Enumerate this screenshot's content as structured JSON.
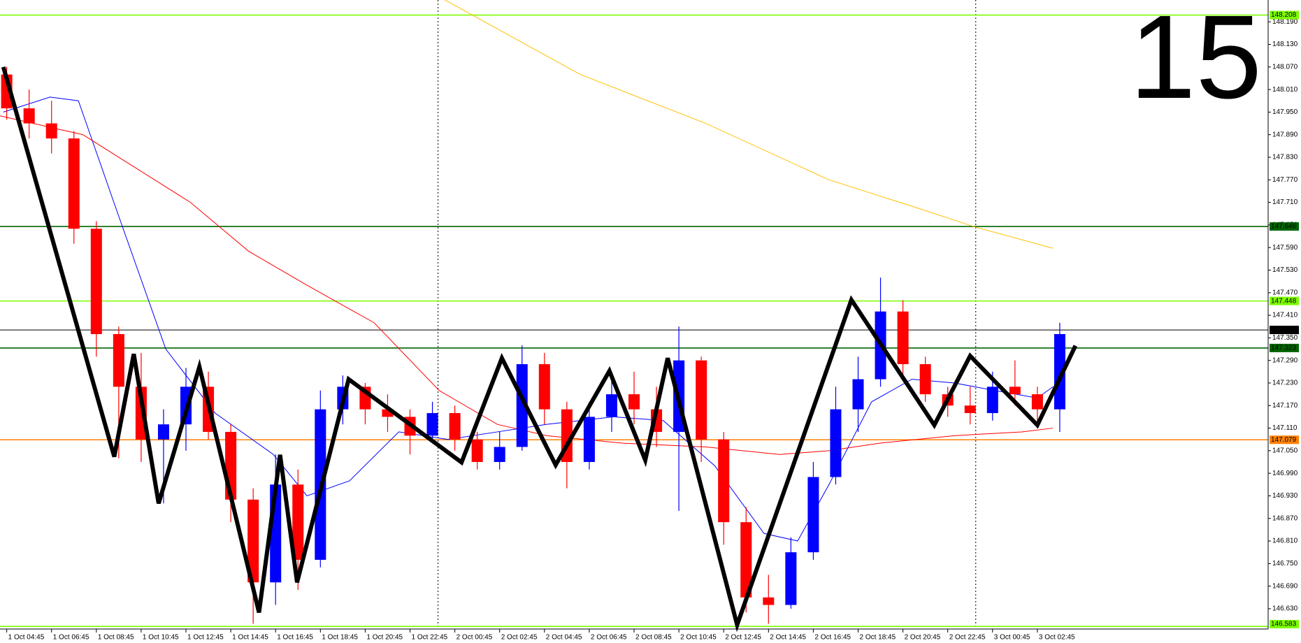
{
  "chart_data": {
    "type": "candlestick",
    "timeframe_label": "15",
    "xlim": [
      -0.3,
      56.3
    ],
    "ylim": [
      146.576,
      148.248
    ],
    "xticks": [
      {
        "value": 0,
        "label": "1 Oct 04:45"
      },
      {
        "value": 2,
        "label": "1 Oct 06:45"
      },
      {
        "value": 4,
        "label": "1 Oct 08:45"
      },
      {
        "value": 6,
        "label": "1 Oct 10:45"
      },
      {
        "value": 8,
        "label": "1 Oct 12:45"
      },
      {
        "value": 10,
        "label": "1 Oct 14:45"
      },
      {
        "value": 12,
        "label": "1 Oct 16:45"
      },
      {
        "value": 14,
        "label": "1 Oct 18:45"
      },
      {
        "value": 16,
        "label": "1 Oct 20:45"
      },
      {
        "value": 18,
        "label": "1 Oct 22:45"
      },
      {
        "value": 20,
        "label": "2 Oct 00:45"
      },
      {
        "value": 22,
        "label": "2 Oct 02:45"
      },
      {
        "value": 24,
        "label": "2 Oct 04:45"
      },
      {
        "value": 26,
        "label": "2 Oct 06:45"
      },
      {
        "value": 28,
        "label": "2 Oct 08:45"
      },
      {
        "value": 30,
        "label": "2 Oct 10:45"
      },
      {
        "value": 32,
        "label": "2 Oct 12:45"
      },
      {
        "value": 34,
        "label": "2 Oct 14:45"
      },
      {
        "value": 36,
        "label": "2 Oct 16:45"
      },
      {
        "value": 38,
        "label": "2 Oct 18:45"
      },
      {
        "value": 40,
        "label": "2 Oct 20:45"
      },
      {
        "value": 42,
        "label": "2 Oct 22:45"
      },
      {
        "value": 44,
        "label": "3 Oct 00:45"
      },
      {
        "value": 46,
        "label": "3 Oct 02:45"
      }
    ],
    "yticks": [
      {
        "value": 146.63,
        "label": "146.630"
      },
      {
        "value": 146.69,
        "label": "146.690"
      },
      {
        "value": 146.75,
        "label": "146.750"
      },
      {
        "value": 146.81,
        "label": "146.810"
      },
      {
        "value": 146.87,
        "label": "146.870"
      },
      {
        "value": 146.93,
        "label": "146.930"
      },
      {
        "value": 146.99,
        "label": "146.990"
      },
      {
        "value": 147.05,
        "label": "147.050"
      },
      {
        "value": 147.11,
        "label": "147.110"
      },
      {
        "value": 147.17,
        "label": "147.170"
      },
      {
        "value": 147.23,
        "label": "147.230"
      },
      {
        "value": 147.29,
        "label": "147.290"
      },
      {
        "value": 147.35,
        "label": "147.350"
      },
      {
        "value": 147.41,
        "label": "147.410"
      },
      {
        "value": 147.47,
        "label": "147.470"
      },
      {
        "value": 147.53,
        "label": "147.530"
      },
      {
        "value": 147.59,
        "label": "147.590"
      },
      {
        "value": 147.65,
        "label": "147.650"
      },
      {
        "value": 147.71,
        "label": "147.710"
      },
      {
        "value": 147.77,
        "label": "147.770"
      },
      {
        "value": 147.83,
        "label": "147.830"
      },
      {
        "value": 147.89,
        "label": "147.890"
      },
      {
        "value": 147.95,
        "label": "147.950"
      },
      {
        "value": 148.01,
        "label": "148.010"
      },
      {
        "value": 148.07,
        "label": "148.070"
      },
      {
        "value": 148.13,
        "label": "148.130"
      },
      {
        "value": 148.19,
        "label": "148.190"
      }
    ],
    "up_color": "#0000ff",
    "down_color": "#ff0000",
    "candles": {
      "x": [
        0,
        1,
        2,
        3,
        4,
        5,
        6,
        7,
        8,
        9,
        10,
        11,
        12,
        13,
        14,
        15,
        16,
        17,
        18,
        19,
        20,
        21,
        22,
        23,
        24,
        25,
        26,
        27,
        28,
        29,
        30,
        31,
        32,
        33,
        34,
        35,
        36,
        37,
        38,
        39,
        40,
        41,
        42,
        43,
        44,
        45,
        46,
        47
      ],
      "open": [
        148.05,
        147.96,
        147.92,
        147.88,
        147.64,
        147.36,
        147.22,
        147.08,
        147.12,
        147.22,
        147.1,
        146.92,
        146.7,
        146.96,
        146.76,
        147.16,
        147.22,
        147.16,
        147.14,
        147.09,
        147.15,
        147.08,
        147.02,
        147.06,
        147.28,
        147.16,
        147.02,
        147.14,
        147.2,
        147.16,
        147.1,
        147.29,
        147.08,
        146.86,
        146.66,
        146.64,
        146.78,
        146.98,
        147.16,
        147.24,
        147.42,
        147.28,
        147.2,
        147.17,
        147.15,
        147.22,
        147.2,
        147.16
      ],
      "high": [
        148.07,
        148.01,
        147.98,
        147.9,
        147.66,
        147.38,
        147.31,
        147.16,
        147.27,
        147.26,
        147.12,
        146.95,
        147.04,
        147.0,
        147.21,
        147.25,
        147.23,
        147.2,
        147.16,
        147.18,
        147.17,
        147.1,
        147.1,
        147.33,
        147.31,
        147.18,
        147.18,
        147.24,
        147.26,
        147.22,
        147.38,
        147.3,
        147.1,
        146.9,
        146.72,
        146.82,
        147.02,
        147.22,
        147.3,
        147.51,
        147.45,
        147.3,
        147.22,
        147.22,
        147.26,
        147.29,
        147.22,
        147.39
      ],
      "low": [
        147.93,
        147.88,
        147.84,
        147.6,
        147.3,
        147.03,
        147.02,
        146.91,
        147.05,
        147.08,
        146.86,
        146.59,
        146.64,
        146.68,
        146.74,
        147.12,
        147.12,
        147.1,
        147.04,
        147.08,
        147.05,
        147.0,
        147.0,
        147.05,
        147.12,
        146.95,
        147.0,
        147.1,
        147.12,
        147.06,
        146.89,
        147.02,
        146.8,
        146.62,
        146.59,
        146.63,
        146.76,
        146.96,
        147.1,
        147.22,
        147.24,
        147.18,
        147.14,
        147.12,
        147.13,
        147.17,
        147.11,
        147.1
      ],
      "close": [
        147.96,
        147.92,
        147.88,
        147.64,
        147.36,
        147.22,
        147.08,
        147.12,
        147.22,
        147.1,
        146.92,
        146.7,
        146.96,
        146.76,
        147.16,
        147.22,
        147.16,
        147.14,
        147.09,
        147.15,
        147.08,
        147.02,
        147.06,
        147.28,
        147.16,
        147.02,
        147.14,
        147.2,
        147.16,
        147.1,
        147.29,
        147.08,
        146.86,
        146.66,
        146.64,
        146.78,
        146.98,
        147.16,
        147.24,
        147.42,
        147.28,
        147.2,
        147.17,
        147.15,
        147.22,
        147.2,
        147.16,
        147.36
      ]
    },
    "moving_averages": [
      {
        "color": "#0000ff",
        "x": [
          -0.15,
          1.93,
          3.2,
          4.9,
          7.1,
          9.3,
          11.9,
          13.4,
          15.3,
          17.5,
          19.7,
          21.9,
          24.1,
          27.1,
          29.3,
          31.6,
          33.8,
          35.3,
          36.7,
          38.6,
          40.4,
          42.3,
          44.1,
          46.0,
          46.7
        ],
        "values": [
          147.95,
          147.99,
          147.98,
          147.69,
          147.32,
          147.15,
          147.04,
          146.93,
          146.97,
          147.1,
          147.08,
          147.1,
          147.12,
          147.14,
          147.13,
          147.01,
          146.83,
          146.81,
          146.96,
          147.18,
          147.24,
          147.23,
          147.21,
          147.19,
          147.22
        ]
      },
      {
        "color": "#ff0000",
        "x": [
          -0.3,
          3.4,
          8.2,
          10.8,
          13.4,
          16.4,
          19.3,
          21.9,
          24.1,
          27.5,
          31.2,
          34.5,
          36.7,
          38.96,
          42.3,
          45.3,
          46.7
        ],
        "values": [
          147.94,
          147.89,
          147.71,
          147.58,
          147.49,
          147.39,
          147.21,
          147.12,
          147.09,
          147.07,
          147.06,
          147.04,
          147.05,
          147.07,
          147.09,
          147.1,
          147.11
        ]
      },
      {
        "color": "#ffc000",
        "x": [
          19.5,
          25.6,
          31.2,
          36.7,
          40.4,
          43.2,
          46.7
        ],
        "values": [
          148.25,
          148.05,
          147.92,
          147.77,
          147.7,
          147.645,
          147.588
        ]
      }
    ],
    "zigzag": {
      "color": "#000000",
      "x": [
        -0.15,
        4.8,
        5.67,
        6.78,
        8.6,
        11.26,
        12.2,
        12.96,
        15.26,
        20.3,
        22.1,
        24.5,
        26.9,
        28.5,
        29.5,
        32.6,
        37.7,
        41.4,
        43.0,
        46.0,
        47.7
      ],
      "values": [
        148.07,
        147.034,
        147.307,
        146.91,
        147.273,
        146.62,
        147.039,
        146.7,
        147.24,
        147.019,
        147.296,
        147.012,
        147.262,
        147.025,
        147.296,
        146.587,
        147.451,
        147.118,
        147.302,
        147.118,
        147.329
      ]
    },
    "period_separators": [
      19.25,
      43.25
    ],
    "levels": [
      {
        "value": 148.208,
        "color": "#7cfc00",
        "text_color": "#ffffff"
      },
      {
        "value": 147.646,
        "color": "#006400",
        "text_color": "#ffffff"
      },
      {
        "value": 147.448,
        "color": "#7cfc00",
        "text_color": "#ffffff"
      },
      {
        "value": 147.371,
        "color": "#000000",
        "text_color": "#ffffff"
      },
      {
        "value": 147.323,
        "color": "#006400",
        "text_color": "#ffffff"
      },
      {
        "value": 147.079,
        "color": "#ff8000",
        "text_color": "#ffffff"
      },
      {
        "value": 146.583,
        "color": "#7cfc00",
        "text_color": "#ffffff"
      }
    ]
  }
}
